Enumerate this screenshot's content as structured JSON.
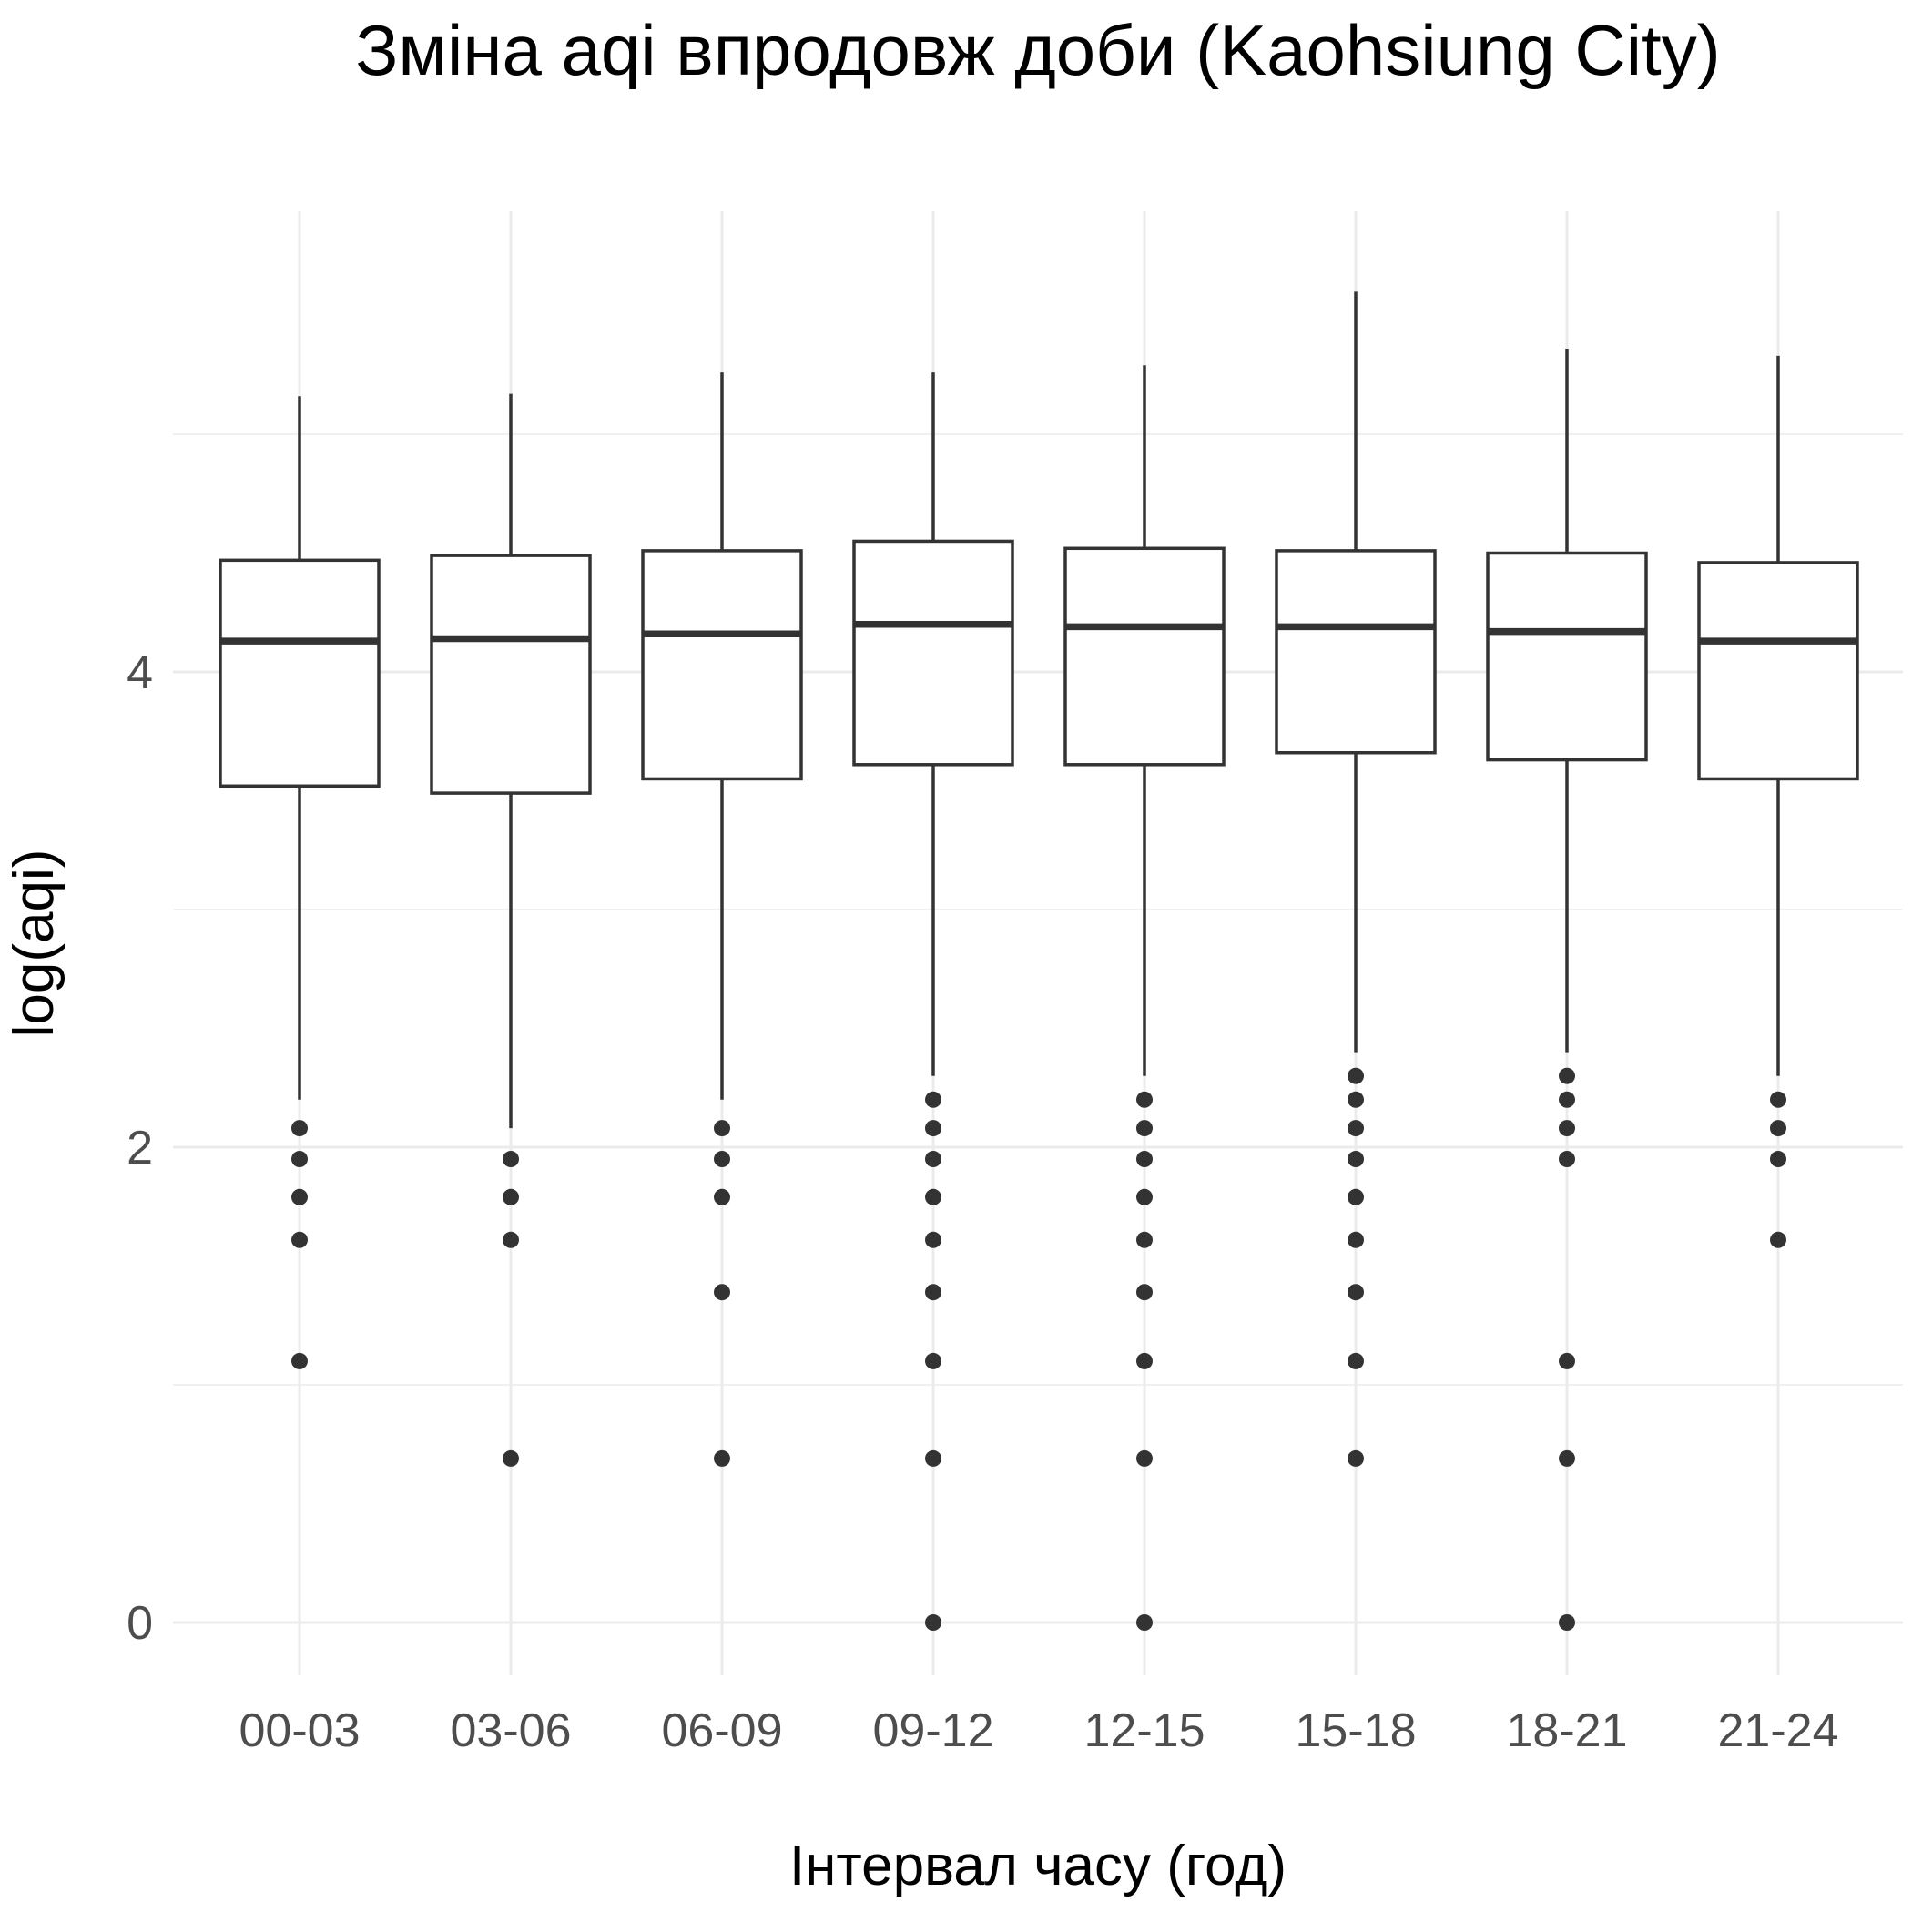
{
  "chart_data": {
    "type": "boxplot",
    "title": "Зміна aqi впродовж доби (Kaohsiung City)",
    "xlabel": "Інтервал часу (год)",
    "ylabel": "log(aqi)",
    "ylim": [
      -0.25,
      5.85
    ],
    "yticks": [
      0,
      2,
      4
    ],
    "grid": true,
    "colors": {
      "box_stroke": "#333333",
      "box_fill": "#ffffff",
      "grid": "#ebebeb"
    },
    "categories": [
      "00-03",
      "03-06",
      "06-09",
      "09-12",
      "12-15",
      "15-18",
      "18-21",
      "21-24"
    ],
    "boxes": [
      {
        "lower_whisker": 2.2,
        "q1": 3.52,
        "median": 4.13,
        "q3": 4.47,
        "upper_whisker": 5.16,
        "outliers": [
          2.08,
          1.95,
          1.79,
          1.61,
          1.1
        ]
      },
      {
        "lower_whisker": 2.08,
        "q1": 3.49,
        "median": 4.14,
        "q3": 4.49,
        "upper_whisker": 5.17,
        "outliers": [
          1.95,
          1.79,
          1.61,
          0.69
        ]
      },
      {
        "lower_whisker": 2.2,
        "q1": 3.55,
        "median": 4.16,
        "q3": 4.51,
        "upper_whisker": 5.26,
        "outliers": [
          2.08,
          1.95,
          1.79,
          1.39,
          0.69
        ]
      },
      {
        "lower_whisker": 2.3,
        "q1": 3.61,
        "median": 4.2,
        "q3": 4.55,
        "upper_whisker": 5.26,
        "outliers": [
          2.2,
          2.08,
          1.95,
          1.79,
          1.61,
          1.39,
          1.1,
          0.69,
          0
        ]
      },
      {
        "lower_whisker": 2.3,
        "q1": 3.61,
        "median": 4.19,
        "q3": 4.52,
        "upper_whisker": 5.29,
        "outliers": [
          2.2,
          2.08,
          1.95,
          1.79,
          1.61,
          1.39,
          1.1,
          0.69,
          0
        ]
      },
      {
        "lower_whisker": 2.4,
        "q1": 3.66,
        "median": 4.19,
        "q3": 4.51,
        "upper_whisker": 5.6,
        "outliers": [
          2.3,
          2.2,
          2.08,
          1.95,
          1.79,
          1.61,
          1.39,
          1.1,
          0.69
        ]
      },
      {
        "lower_whisker": 2.4,
        "q1": 3.63,
        "median": 4.17,
        "q3": 4.5,
        "upper_whisker": 5.36,
        "outliers": [
          2.3,
          2.2,
          2.08,
          1.95,
          1.1,
          0.69,
          0
        ]
      },
      {
        "lower_whisker": 2.3,
        "q1": 3.55,
        "median": 4.13,
        "q3": 4.46,
        "upper_whisker": 5.33,
        "outliers": [
          2.2,
          2.08,
          1.95,
          1.61
        ]
      }
    ]
  }
}
